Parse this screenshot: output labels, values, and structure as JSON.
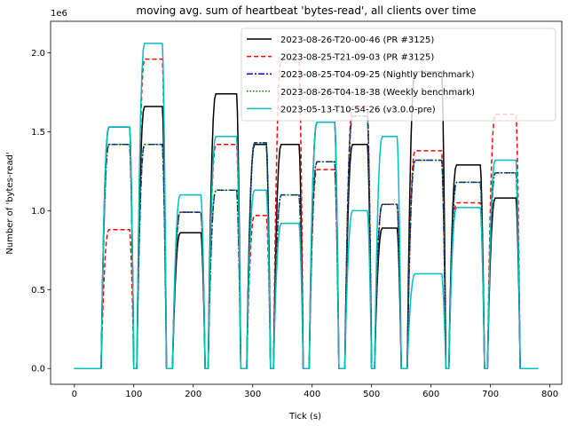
{
  "chart_data": {
    "type": "line",
    "title": "moving avg. sum of heartbeat 'bytes-read', all clients over time",
    "xlabel": "Tick (s)",
    "ylabel": "Number of 'bytes-read'",
    "y_offset_text": "1e6",
    "xlim": [
      -40,
      820
    ],
    "ylim": [
      -0.1,
      2.2
    ],
    "xticks": [
      0,
      100,
      200,
      300,
      400,
      500,
      600,
      700,
      800
    ],
    "yticks": [
      0.0,
      0.5,
      1.0,
      1.5,
      2.0
    ],
    "ytick_labels": [
      "0.0",
      "0.5",
      "1.0",
      "1.5",
      "2.0"
    ],
    "legend_loc": "upper right",
    "x_min": 0,
    "x_max": 780,
    "blocks": [
      {
        "start": 45,
        "end": 100
      },
      {
        "start": 105,
        "end": 155
      },
      {
        "start": 165,
        "end": 220
      },
      {
        "start": 225,
        "end": 280
      },
      {
        "start": 290,
        "end": 330
      },
      {
        "start": 335,
        "end": 385
      },
      {
        "start": 395,
        "end": 445
      },
      {
        "start": 455,
        "end": 500
      },
      {
        "start": 505,
        "end": 550
      },
      {
        "start": 560,
        "end": 625
      },
      {
        "start": 630,
        "end": 690
      },
      {
        "start": 695,
        "end": 750
      }
    ],
    "series": [
      {
        "name": "2023-08-26-T20-00-46 (PR #3125)",
        "color": "#000000",
        "dash": "",
        "plateaus": [
          1.53,
          1.66,
          0.86,
          1.74,
          1.42,
          1.42,
          1.56,
          1.42,
          0.89,
          1.88,
          1.29,
          1.08
        ]
      },
      {
        "name": "2023-08-25-T21-09-03 (PR #3125)",
        "color": "#ff0000",
        "dash": "5,3",
        "plateaus": [
          0.88,
          1.96,
          0.99,
          1.42,
          0.97,
          1.96,
          1.26,
          1.66,
          1.04,
          1.38,
          1.05,
          1.61
        ]
      },
      {
        "name": "2023-08-25-T04-09-25 (Nightly benchmark)",
        "color": "#0000cc",
        "dash": "7,2,2,2",
        "plateaus": [
          1.42,
          1.42,
          0.99,
          1.13,
          1.43,
          1.1,
          1.31,
          1.6,
          1.04,
          1.32,
          1.18,
          1.24
        ]
      },
      {
        "name": "2023-08-26-T04-18-38 (Weekly benchmark)",
        "color": "#008000",
        "dash": "1.5,2",
        "plateaus": [
          1.42,
          1.42,
          0.99,
          1.13,
          1.43,
          1.1,
          1.31,
          1.6,
          1.04,
          1.32,
          1.18,
          1.24
        ]
      },
      {
        "name": "2023-05-13-T10-54-26 (v3.0.0-pre)",
        "color": "#00bfbf",
        "dash": "",
        "plateaus": [
          1.53,
          2.06,
          1.1,
          1.47,
          1.13,
          0.92,
          1.56,
          1.0,
          1.47,
          0.6,
          1.02,
          1.32
        ]
      }
    ]
  }
}
